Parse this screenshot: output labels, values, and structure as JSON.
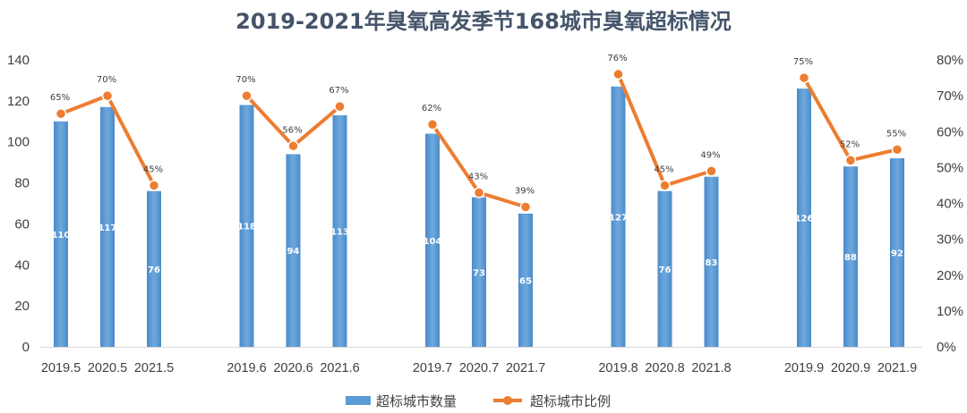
{
  "chart_data": {
    "type": "bar",
    "title": "2019-2021年臭氧高发季节168城市臭氧超标情况",
    "categories": [
      "2019.5",
      "2020.5",
      "2021.5",
      "2019.6",
      "2020.6",
      "2021.6",
      "2019.7",
      "2020.7",
      "2021.7",
      "2019.8",
      "2020.8",
      "2021.8",
      "2019.9",
      "2020.9",
      "2021.9"
    ],
    "series": [
      {
        "name": "超标城市数量",
        "type": "bar",
        "axis": "left",
        "color": "#5b9bd5",
        "values": [
          110,
          117,
          76,
          118,
          94,
          113,
          104,
          73,
          65,
          127,
          76,
          83,
          126,
          88,
          92
        ],
        "labels": [
          "110",
          "117",
          "76",
          "118",
          "94",
          "113",
          "104",
          "73",
          "65",
          "127",
          "76",
          "83",
          "126",
          "88",
          "92"
        ]
      },
      {
        "name": "超标城市比例",
        "type": "line",
        "axis": "right",
        "color": "#ed7d31",
        "values": [
          65,
          70,
          45,
          70,
          56,
          67,
          62,
          43,
          39,
          76,
          45,
          49,
          75,
          52,
          55
        ],
        "labels": [
          "65%",
          "70%",
          "45%",
          "70%",
          "56%",
          "67%",
          "62%",
          "43%",
          "39%",
          "76%",
          "45%",
          "49%",
          "75%",
          "52%",
          "55%"
        ]
      }
    ],
    "y_left": {
      "ylim": [
        0,
        140
      ],
      "ticks": [
        "0",
        "20",
        "40",
        "60",
        "80",
        "100",
        "120",
        "140"
      ]
    },
    "y_right": {
      "ylim": [
        0,
        80
      ],
      "ticks": [
        "0%",
        "10%",
        "20%",
        "30%",
        "40%",
        "50%",
        "60%",
        "70%",
        "80%"
      ]
    },
    "legend_position": "bottom",
    "grid": false
  }
}
